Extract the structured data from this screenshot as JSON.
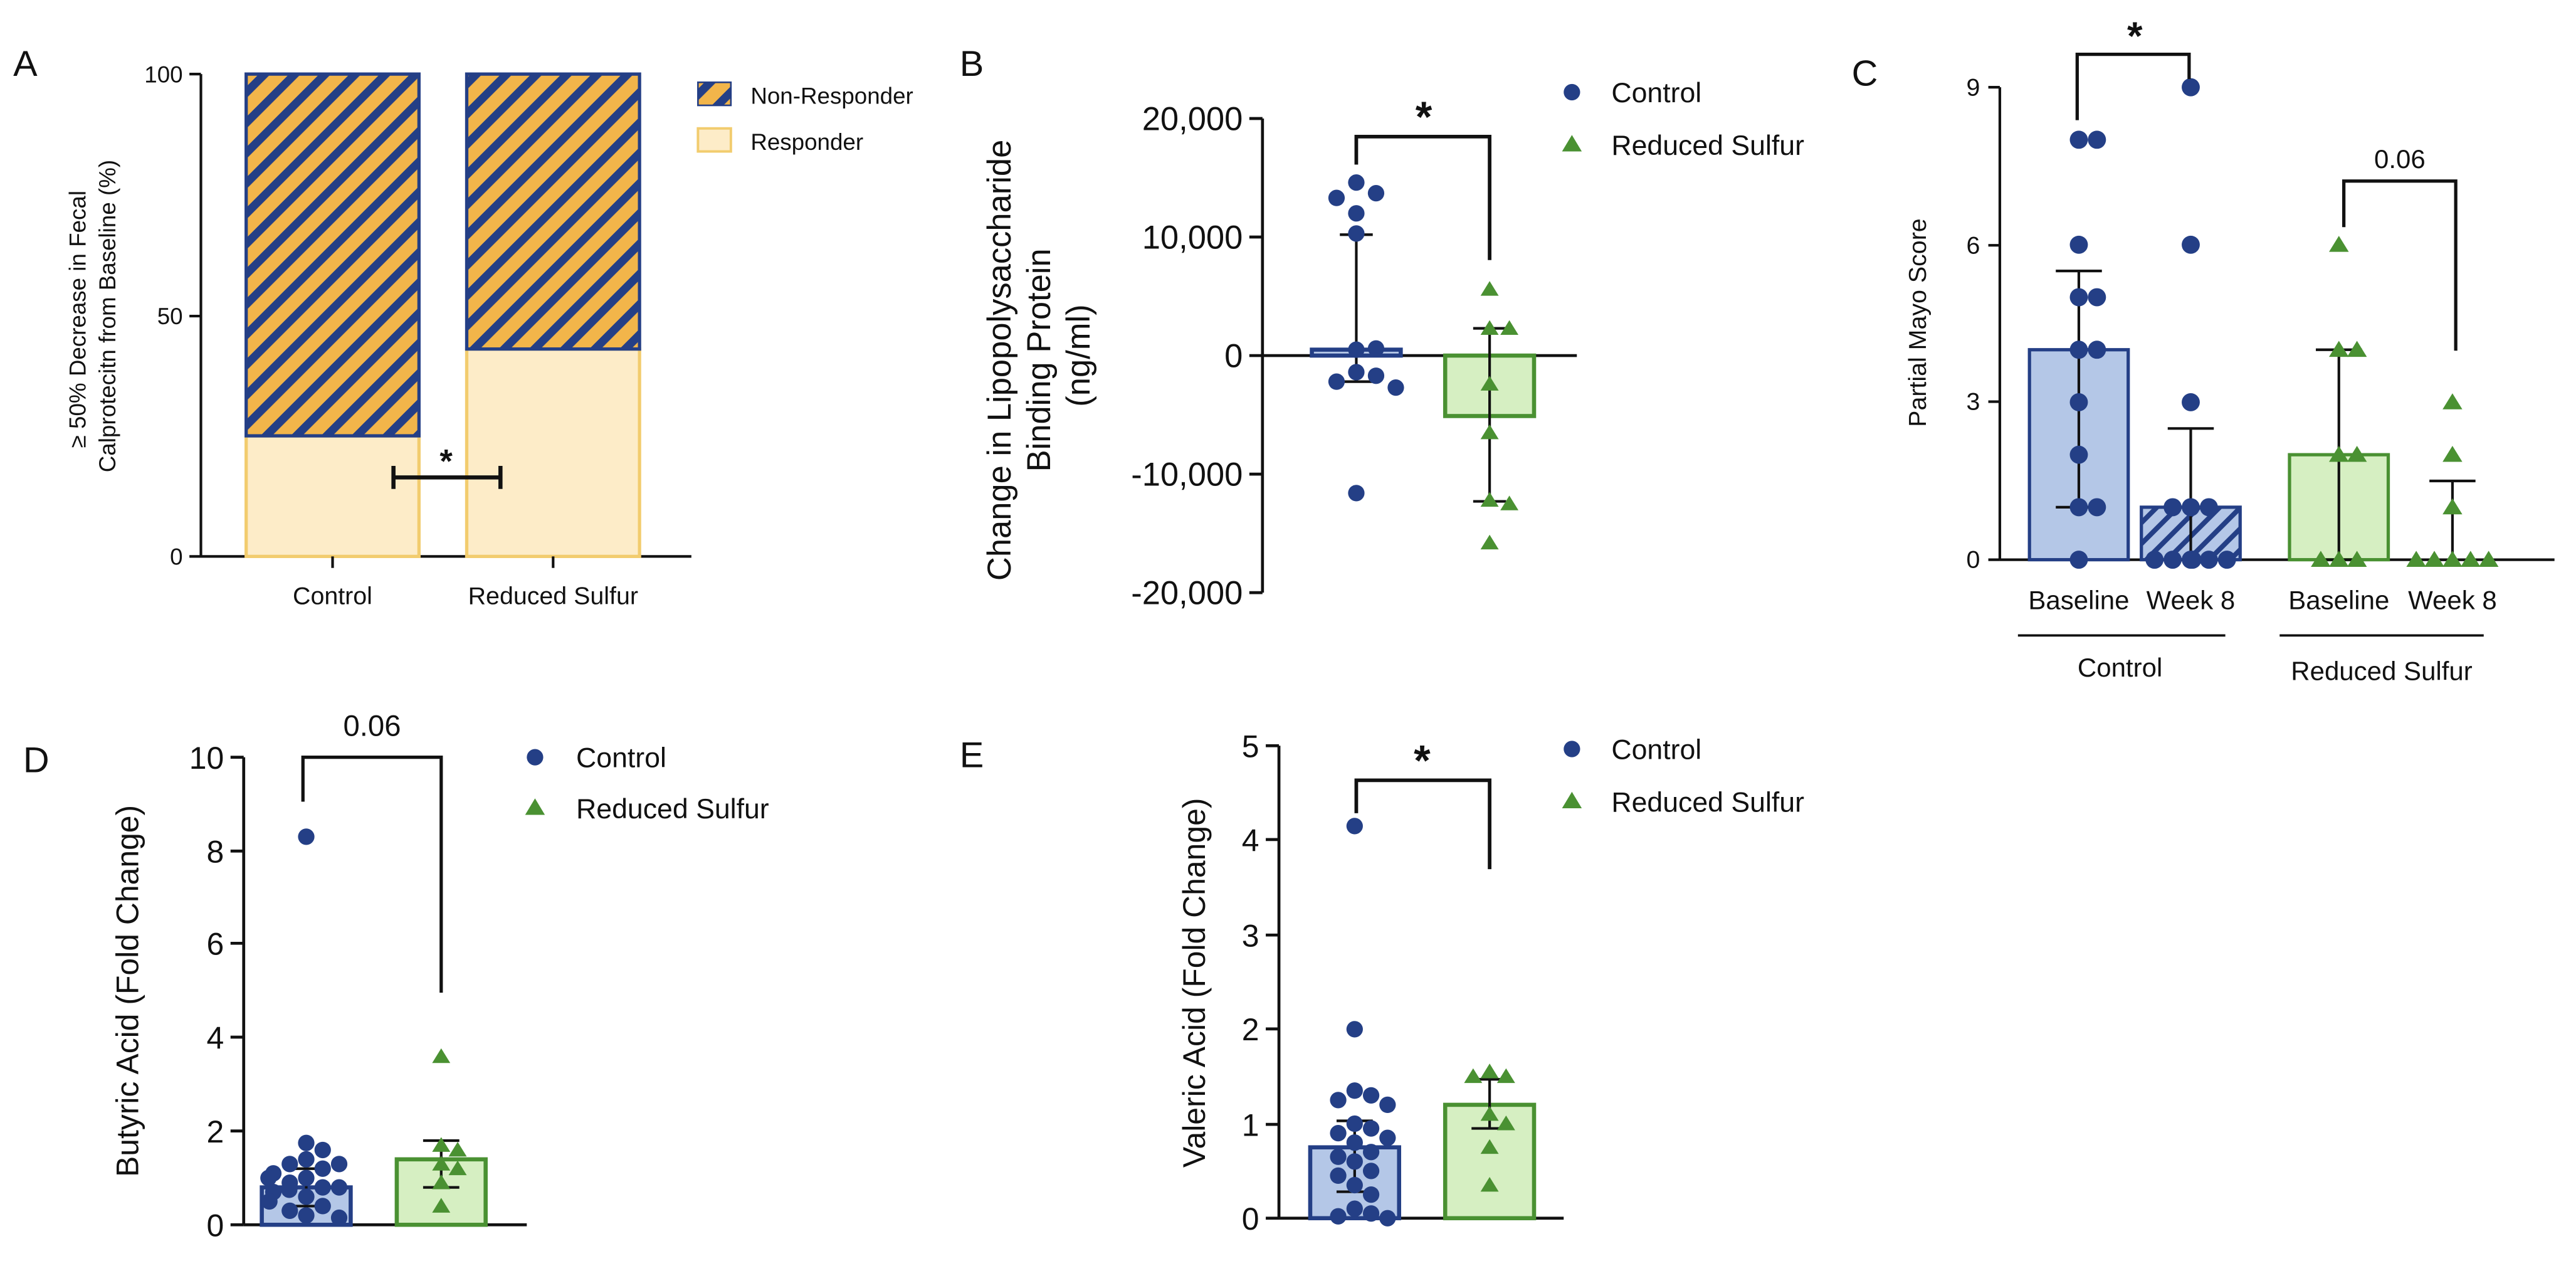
{
  "colors": {
    "control": "#243f86",
    "control_bar": "#b4c7e7",
    "sulfur": "#4a9132",
    "sulfur_bar": "#d6efc2",
    "responder": "#fdecc8",
    "responder_edge": "#f2cc6e",
    "nonresponder": "#f2b54a",
    "axis": "#111111"
  },
  "chart_data": [
    {
      "panel": "A",
      "type": "bar",
      "stacked": true,
      "ylabel_lines": [
        "≥ 50% Decrease in Fecal",
        "Calprotecitn from Baseline (%)"
      ],
      "categories": [
        "Control",
        "Reduced Sulfur"
      ],
      "ylim": [
        0,
        100
      ],
      "yticks": [
        "0",
        "50",
        "100"
      ],
      "series": [
        {
          "name": "Responder",
          "values": [
            25,
            43
          ]
        },
        {
          "name": "Non-Responder",
          "values": [
            75,
            57
          ]
        }
      ],
      "legend": [
        "Non-Responder",
        "Responder"
      ],
      "significance": "*"
    },
    {
      "panel": "B",
      "type": "bar",
      "ylabel_lines": [
        "Change in Lipopolysaccharide",
        "Binding Protein",
        "(ng/ml)"
      ],
      "categories": [
        "Control",
        "Reduced Sulfur"
      ],
      "ylim": [
        -20000,
        20000
      ],
      "yticks": [
        "20,000",
        "10,000",
        "0",
        "-10,000",
        "-20,000"
      ],
      "means": [
        500,
        -5100
      ],
      "sd": [
        [
          -2200,
          10200
        ],
        [
          -12300,
          2300
        ]
      ],
      "points": [
        [
          14600,
          13700,
          13300,
          12000,
          10300,
          500,
          600,
          -1400,
          -1700,
          -2200,
          -2700,
          -11600
        ],
        [
          5600,
          2300,
          2300,
          -2400,
          -6500,
          -12200,
          -12500,
          -15800
        ]
      ],
      "legend": [
        "Control",
        "Reduced Sulfur"
      ],
      "significance": "*"
    },
    {
      "panel": "C",
      "type": "bar",
      "ylabel": "Partial Mayo Score",
      "categories": [
        "Baseline",
        "Week 8",
        "Baseline",
        "Week 8"
      ],
      "groups": [
        "Control",
        "Reduced Sulfur"
      ],
      "ylim": [
        0,
        9
      ],
      "yticks": [
        "0",
        "3",
        "6",
        "9"
      ],
      "means": [
        4.0,
        1.0,
        2.0,
        0.0
      ],
      "sd": [
        [
          1.0,
          5.5
        ],
        [
          0,
          2.5
        ],
        [
          0,
          4.0
        ],
        [
          0,
          1.5
        ]
      ],
      "points": [
        [
          8,
          8,
          6,
          5,
          5,
          4,
          4,
          3,
          2,
          1,
          1,
          0
        ],
        [
          9,
          6,
          3,
          1,
          1,
          1,
          0,
          0,
          0,
          0,
          0,
          0
        ],
        [
          6,
          4,
          4,
          2,
          2,
          0,
          0,
          0
        ],
        [
          3,
          2,
          1,
          0,
          0,
          0,
          0,
          0
        ]
      ],
      "annotations": [
        "*",
        "0.06"
      ]
    },
    {
      "panel": "D",
      "type": "bar",
      "ylabel": "Butyric Acid (Fold Change)",
      "categories": [
        "Control",
        "Reduced Sulfur"
      ],
      "ylim": [
        0,
        10
      ],
      "yticks": [
        "0",
        "2",
        "4",
        "6",
        "8",
        "10"
      ],
      "means": [
        0.8,
        1.4
      ],
      "sd": [
        [
          0.4,
          1.2
        ],
        [
          0.8,
          1.8
        ]
      ],
      "points": [
        [
          8.3,
          1.75,
          1.6,
          1.4,
          1.3,
          1.3,
          1.2,
          1.1,
          1.0,
          1.0,
          0.9,
          0.8,
          0.8,
          0.75,
          0.7,
          0.6,
          0.5,
          0.4,
          0.3,
          0.2,
          0.15
        ],
        [
          3.6,
          1.7,
          1.6,
          1.3,
          1.2,
          0.9,
          0.4
        ]
      ],
      "legend": [
        "Control",
        "Reduced Sulfur"
      ],
      "annotation": "0.06"
    },
    {
      "panel": "E",
      "type": "bar",
      "ylabel": "Valeric Acid (Fold Change)",
      "categories": [
        "Control",
        "Reduced Sulfur"
      ],
      "ylim": [
        0,
        5
      ],
      "yticks": [
        "0",
        "1",
        "2",
        "3",
        "4",
        "5"
      ],
      "means": [
        0.75,
        1.2
      ],
      "sd": [
        [
          0.28,
          1.03
        ],
        [
          0.95,
          1.47
        ]
      ],
      "points": [
        [
          4.15,
          2.0,
          1.35,
          1.3,
          1.25,
          1.2,
          1.0,
          0.95,
          0.9,
          0.85,
          0.8,
          0.7,
          0.65,
          0.6,
          0.5,
          0.45,
          0.35,
          0.25,
          0.1,
          0.05,
          0.02,
          0.0
        ],
        [
          1.55,
          1.5,
          1.5,
          1.1,
          1.0,
          0.75,
          0.35
        ]
      ],
      "legend": [
        "Control",
        "Reduced Sulfur"
      ],
      "significance": "*"
    }
  ]
}
